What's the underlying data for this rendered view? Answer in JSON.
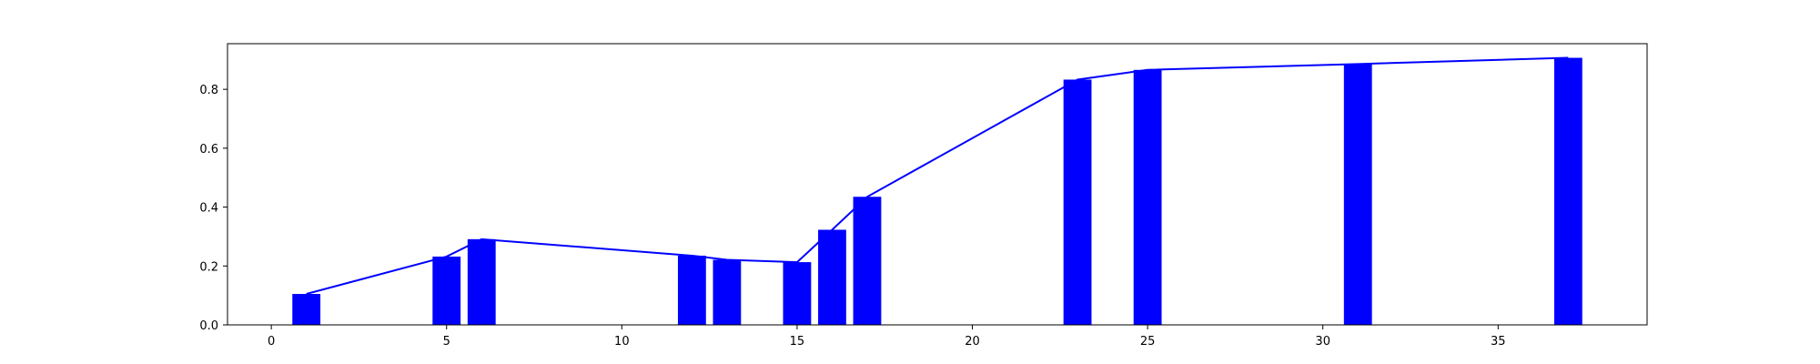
{
  "chart_data": {
    "type": "bar",
    "title": "",
    "xlabel": "",
    "ylabel": "",
    "xlim": [
      -1.25,
      39.25
    ],
    "ylim": [
      0,
      0.955
    ],
    "x_ticks": [
      0,
      5,
      10,
      15,
      20,
      25,
      30,
      35
    ],
    "y_ticks": [
      0.0,
      0.2,
      0.4,
      0.6,
      0.8
    ],
    "x_tick_labels": [
      "0",
      "5",
      "10",
      "15",
      "20",
      "25",
      "30",
      "35"
    ],
    "y_tick_labels": [
      "0.0",
      "0.2",
      "0.4",
      "0.6",
      "0.8"
    ],
    "grid": false,
    "bar_width": 0.8,
    "colors": {
      "bar": "#0000ff",
      "line": "#0000ff",
      "axes": "#000000"
    },
    "x": [
      1,
      5,
      6,
      12,
      13,
      15,
      16,
      17,
      23,
      25,
      31,
      37
    ],
    "values": [
      0.105,
      0.232,
      0.291,
      0.235,
      0.221,
      0.213,
      0.323,
      0.435,
      0.833,
      0.866,
      0.886,
      0.907
    ]
  }
}
